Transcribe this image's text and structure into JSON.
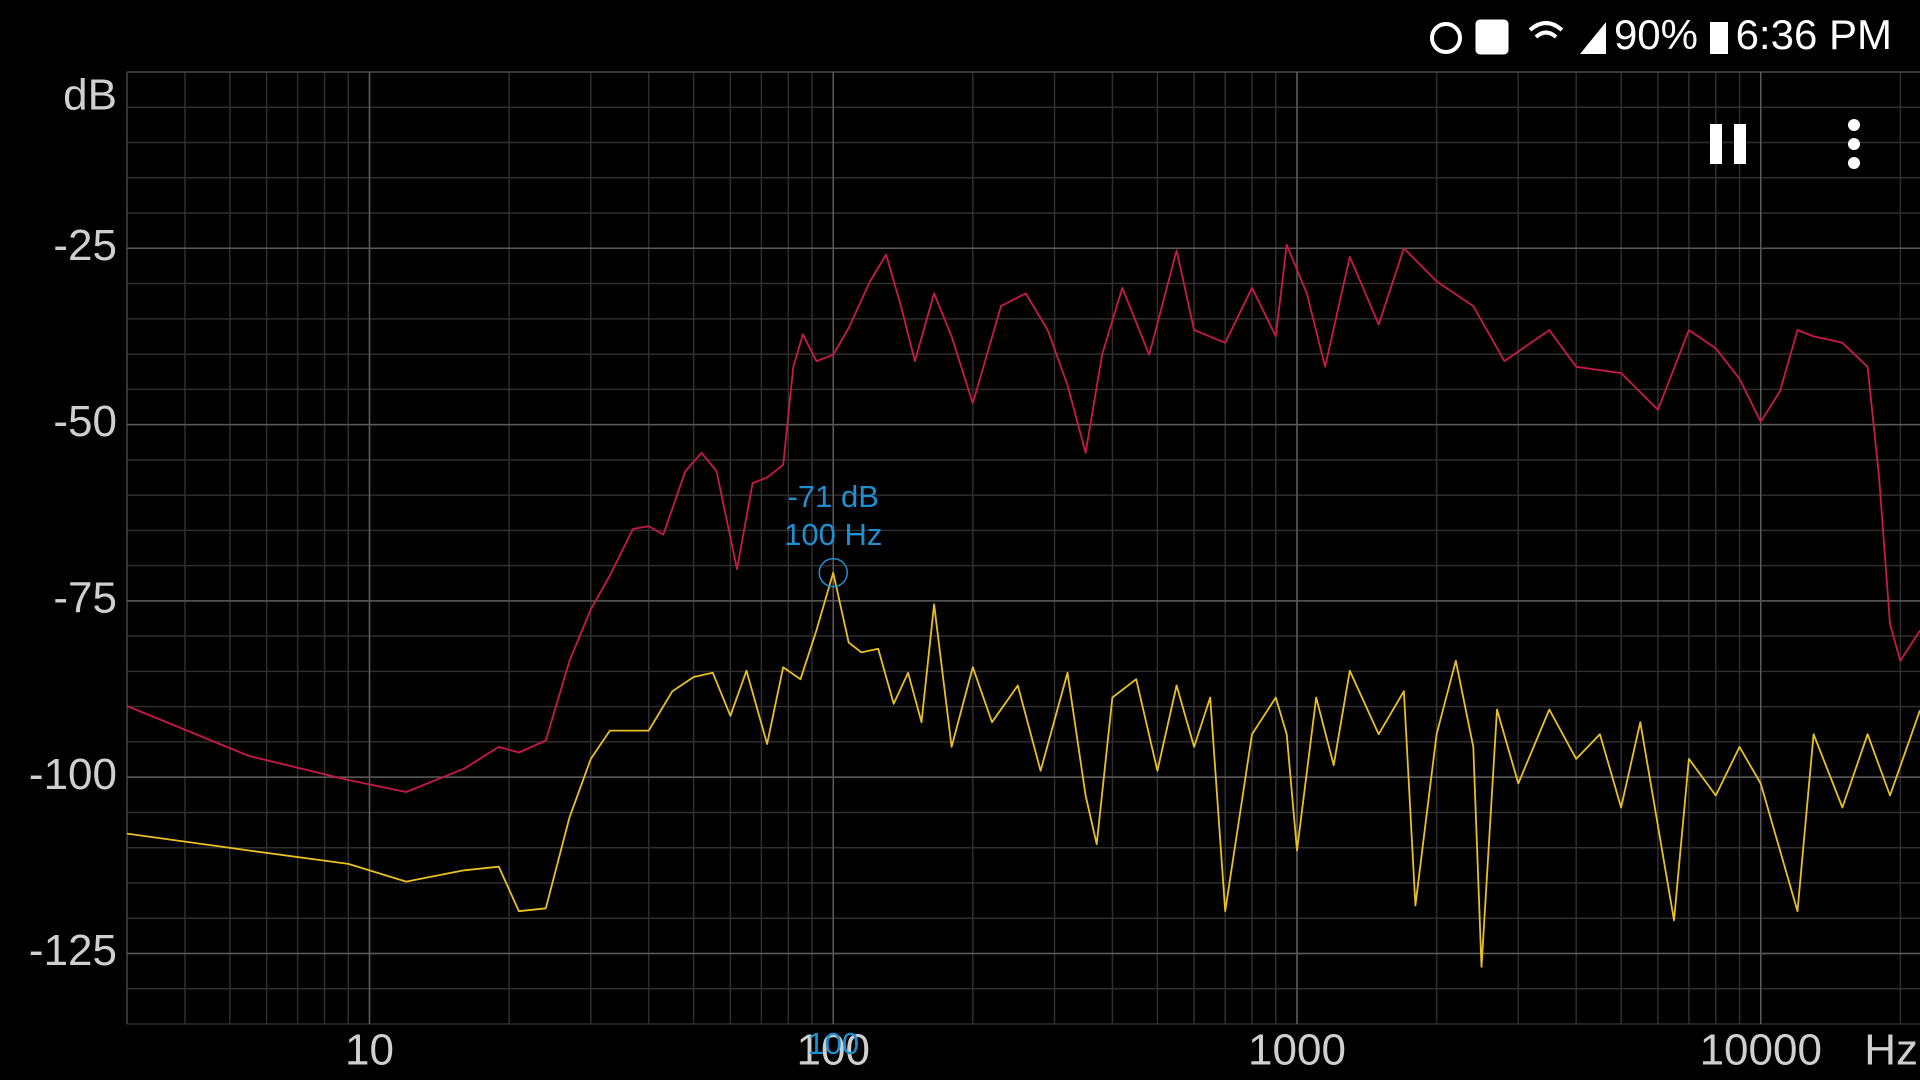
{
  "status_bar": {
    "battery": "90%",
    "time": "6:36 PM"
  },
  "chart_data": {
    "type": "line",
    "x_label": "Hz",
    "y_label": "dB",
    "xscale": "log",
    "xlim": [
      3,
      22050
    ],
    "xticks": [
      10,
      100,
      1000,
      10000
    ],
    "ylim": [
      -135,
      0
    ],
    "yticks": [
      -25,
      -50,
      -75,
      -100,
      -125
    ],
    "grid": true,
    "minor_grid": true,
    "series": [
      {
        "color": "#c8194a",
        "x": [
          3,
          5.5,
          9,
          12,
          16,
          19,
          21,
          24,
          27,
          30,
          33,
          37,
          40,
          43,
          48,
          52,
          56,
          62,
          67,
          72,
          78,
          82,
          86,
          92,
          100,
          108,
          120,
          130,
          140,
          150,
          165,
          180,
          200,
          230,
          260,
          290,
          320,
          350,
          380,
          420,
          480,
          550,
          600,
          700,
          800,
          900,
          950,
          1050,
          1150,
          1300,
          1500,
          1700,
          2000,
          2400,
          2800,
          3500,
          4000,
          5000,
          6000,
          7000,
          8000,
          9000,
          10000,
          11000,
          12000,
          13000,
          15000,
          17000,
          18000,
          19000,
          20000,
          22050
        ],
        "values": [
          -89.9,
          -97,
          -100.4,
          -102.1,
          -98.8,
          -95.7,
          -96.5,
          -94.8,
          -83.5,
          -76.2,
          -71.4,
          -64.8,
          -64.4,
          -65.6,
          -56.6,
          -54,
          -56.6,
          -70.5,
          -58.3,
          -57.5,
          -55.7,
          -41.8,
          -37.2,
          -41,
          -40.1,
          -36.3,
          -29.7,
          -25.9,
          -33.2,
          -41,
          -31.4,
          -37.5,
          -47,
          -33.2,
          -31.4,
          -36.6,
          -44.4,
          -54,
          -40.1,
          -30.6,
          -40.1,
          -25.3,
          -36.6,
          -38.4,
          -30.6,
          -37.5,
          -24.5,
          -31.4,
          -41.8,
          -26.2,
          -35.8,
          -25,
          -29.7,
          -33.2,
          -41,
          -36.6,
          -41.8,
          -42.7,
          -47.9,
          -36.6,
          -39.2,
          -43.5,
          -49.6,
          -45.3,
          -36.6,
          -37.5,
          -38.4,
          -41.8,
          -57.5,
          -78.3,
          -83.5,
          -79.2
        ]
      },
      {
        "color": "#e8c020",
        "x": [
          3,
          5.5,
          9,
          12,
          16,
          19,
          21,
          24,
          27,
          30,
          33,
          40,
          45,
          50,
          55,
          60,
          65,
          72,
          78,
          85,
          92,
          100,
          108,
          115,
          125,
          135,
          145,
          155,
          165,
          180,
          200,
          220,
          250,
          280,
          320,
          350,
          370,
          400,
          450,
          500,
          550,
          600,
          650,
          700,
          800,
          900,
          950,
          1000,
          1100,
          1200,
          1300,
          1500,
          1700,
          1800,
          2000,
          2200,
          2400,
          2500,
          2700,
          3000,
          3500,
          4000,
          4500,
          5000,
          5500,
          6500,
          7000,
          8000,
          9000,
          10000,
          12000,
          13000,
          15000,
          17000,
          19000,
          22050
        ],
        "values": [
          -108,
          -110.4,
          -112.3,
          -114.8,
          -113.2,
          -112.7,
          -119,
          -118.6,
          -105.7,
          -97.4,
          -93.4,
          -93.4,
          -87.8,
          -85.8,
          -85.2,
          -91.3,
          -84.9,
          -95.3,
          -84.4,
          -86.1,
          -79.2,
          -71,
          -80.9,
          -82.3,
          -81.8,
          -89.6,
          -85.2,
          -92.2,
          -75.5,
          -95.7,
          -84.4,
          -92.2,
          -87,
          -99.1,
          -85.2,
          -102.6,
          -109.5,
          -88.7,
          -86.1,
          -99.1,
          -87,
          -95.7,
          -88.7,
          -119,
          -93.9,
          -88.7,
          -93.9,
          -110.4,
          -88.7,
          -98.3,
          -84.9,
          -93.9,
          -87.8,
          -118.2,
          -93.9,
          -83.5,
          -95.7,
          -126.9,
          -90.4,
          -100.9,
          -90.4,
          -97.4,
          -93.9,
          -104.3,
          -92.2,
          -120.3,
          -97.4,
          -102.6,
          -95.7,
          -100.9,
          -119,
          -93.9,
          -104.3,
          -93.9,
          -102.6,
          -90.5
        ]
      }
    ],
    "cursor": {
      "x": 100,
      "y": -71,
      "y_label": "-71 dB",
      "x_label": "100 Hz",
      "axis_label": "100",
      "color": "#1e8fd0"
    }
  }
}
